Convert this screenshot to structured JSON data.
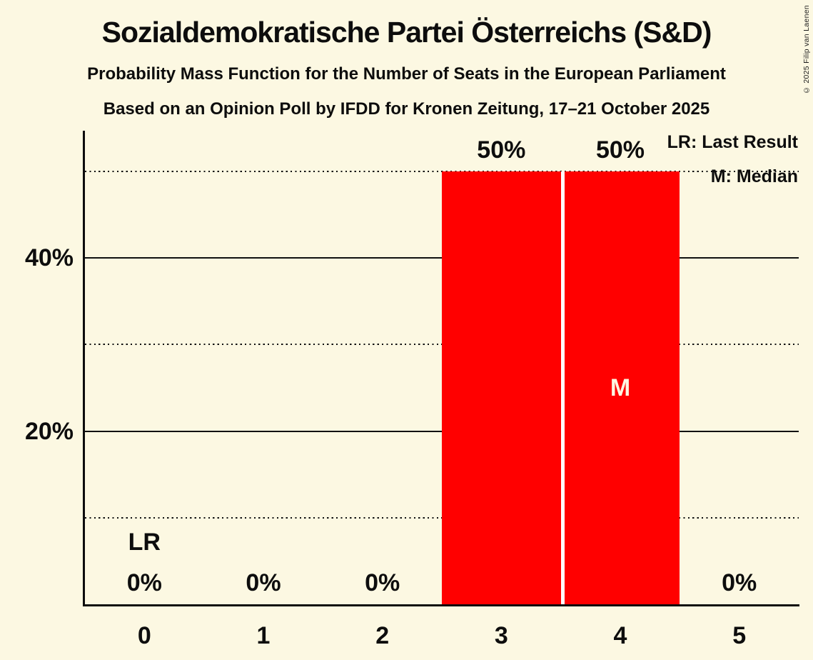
{
  "page": {
    "copyright": "© 2025 Filip van Laenen"
  },
  "header": {
    "title": "Sozialdemokratische Partei Österreichs (S&D)",
    "subtitle": "Probability Mass Function for the Number of Seats in the European Parliament",
    "poll_details": "Based on an Opinion Poll by IFDD for Kronen Zeitung, 17–21 October 2025"
  },
  "legend": {
    "lr_label": "LR: Last Result",
    "m_label": "M: Median"
  },
  "colors": {
    "background": "#fcf8e2",
    "bar": "#ff0000",
    "bar_divider": "#ffffff",
    "text": "#0d0d0d",
    "median_text": "#fcf8e2"
  },
  "chart_data": {
    "type": "bar",
    "title": "Sozialdemokratische Partei Österreichs (S&D)",
    "subtitle": "Probability Mass Function for the Number of Seats in the European Parliament",
    "categories": [
      "0",
      "1",
      "2",
      "3",
      "4",
      "5"
    ],
    "values": [
      0,
      0,
      0,
      50,
      50,
      0
    ],
    "value_labels": [
      "0%",
      "0%",
      "0%",
      "50%",
      "50%",
      "0%"
    ],
    "xlabel": "",
    "ylabel": "",
    "ylim": [
      0,
      54.7
    ],
    "yticks": [
      {
        "value": 20,
        "label": "20%"
      },
      {
        "value": 40,
        "label": "40%"
      }
    ],
    "gridlines": {
      "solid": [
        20,
        40
      ],
      "dotted": [
        10,
        30,
        50
      ]
    },
    "annotations": {
      "last_result": {
        "category_index": 0,
        "label": "LR"
      },
      "median": {
        "category_index": 4,
        "label": "M"
      }
    },
    "legend_position": "top-right",
    "legend_entries": [
      "LR: Last Result",
      "M: Median"
    ]
  }
}
